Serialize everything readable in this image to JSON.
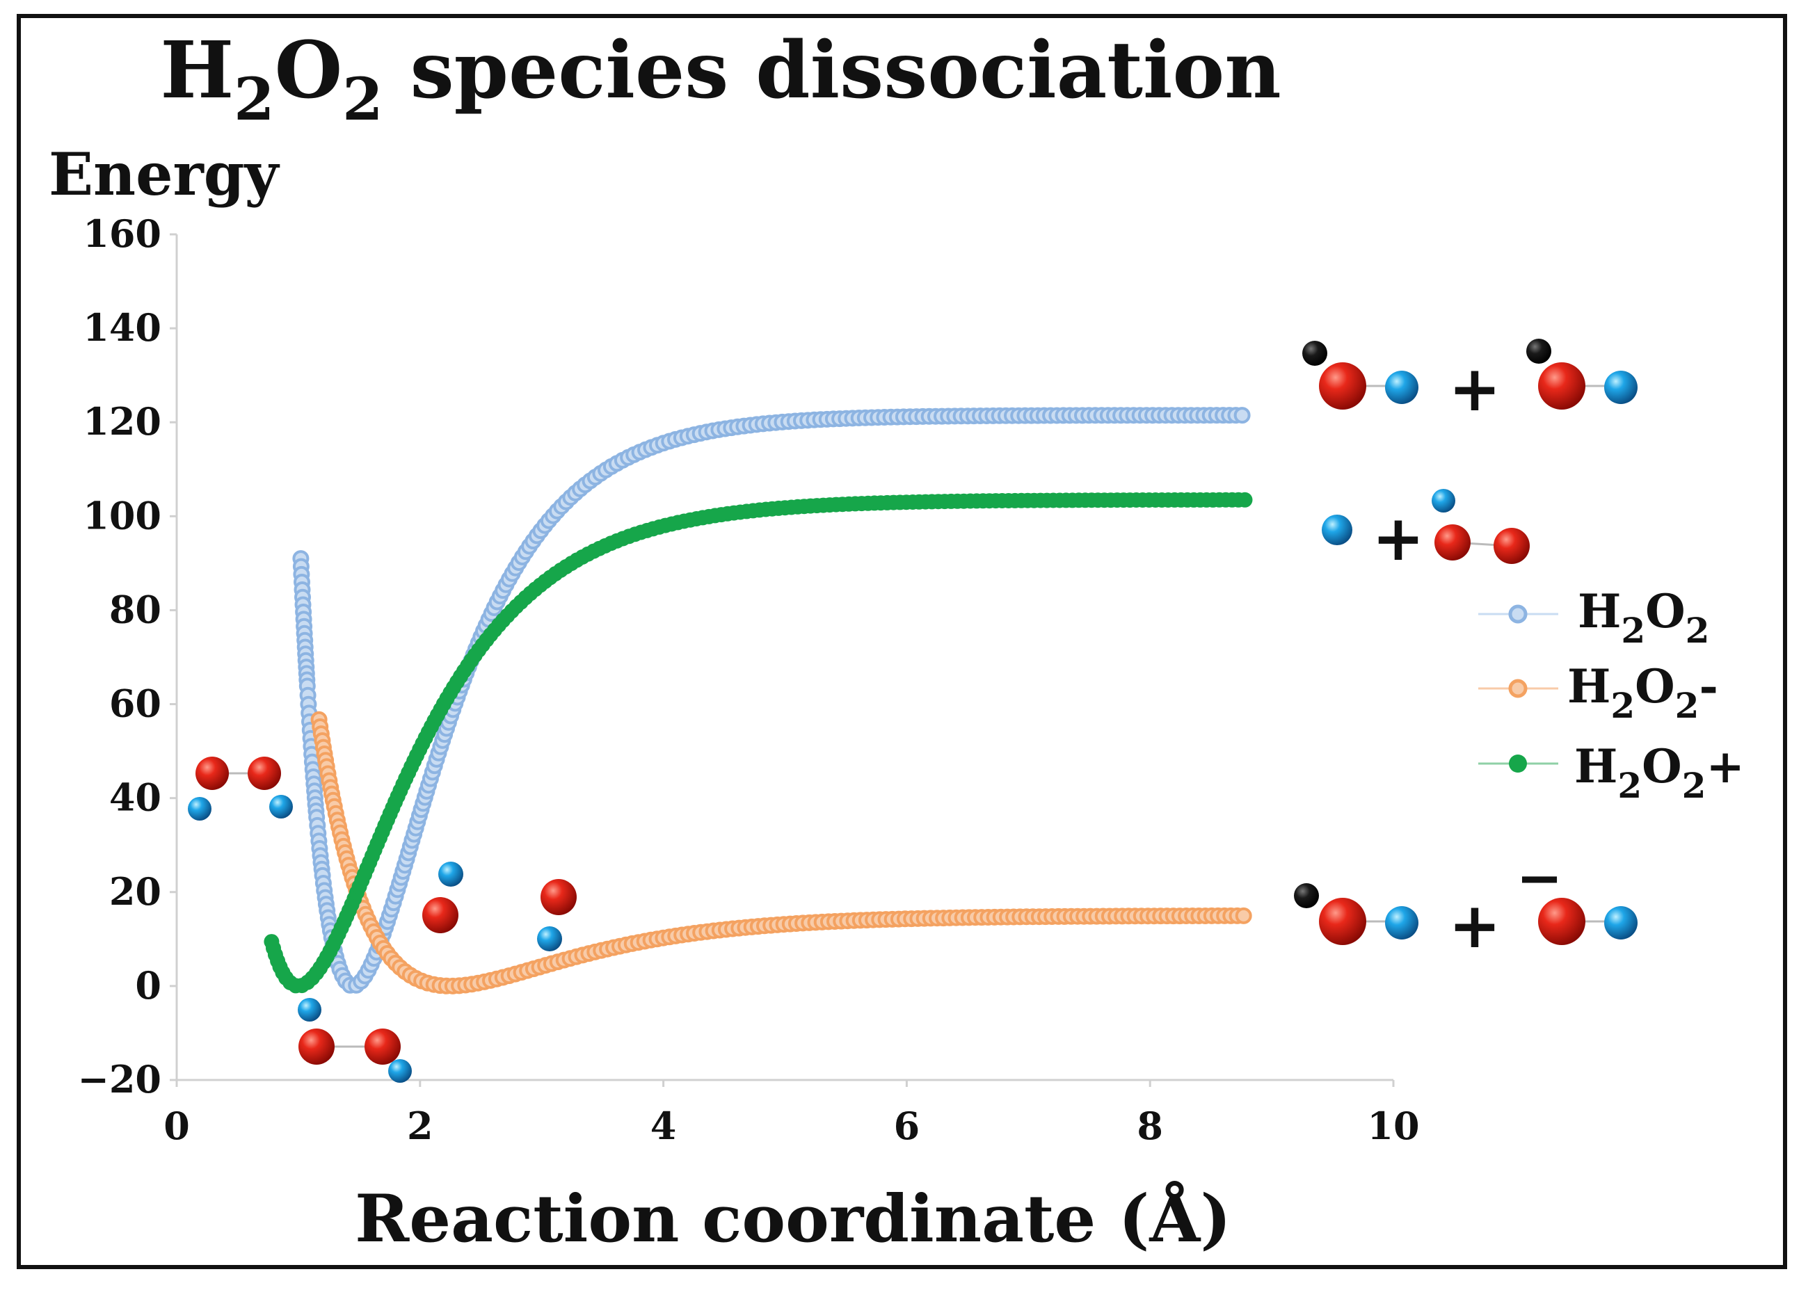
{
  "chart_data": {
    "type": "scatter",
    "title": {
      "main": "H",
      "sub1": "2",
      "mid": "O",
      "sub2": "2",
      "rest": " species dissociation"
    },
    "ylabel": "Energy",
    "xlabel": "Reaction coordinate (Å)",
    "xlim": [
      0,
      10
    ],
    "ylim": [
      -20,
      160
    ],
    "xticks": [
      "0",
      "2",
      "4",
      "6",
      "8",
      "10"
    ],
    "yticks": [
      "160",
      "140",
      "120",
      "100",
      "80",
      "60",
      "40",
      "20",
      "0",
      "−20"
    ],
    "grid": false,
    "legend_position": "right",
    "series": [
      {
        "name": "H2O2",
        "label_main": "H",
        "label_sub1": "2",
        "label_mid": "O",
        "label_sub2": "2",
        "label_suffix": "",
        "color": "#8db4e2",
        "line_color": "#c9dcf2",
        "marker": "hollow",
        "depth": 121.5,
        "r_eq": 1.45,
        "a": 1.45,
        "x_start": 1.02,
        "x_end": 8.8
      },
      {
        "name": "H2O2-",
        "label_main": "H",
        "label_sub1": "2",
        "label_mid": "O",
        "label_sub2": "2",
        "label_suffix": "-",
        "color": "#f4a261",
        "line_color": "#f8cba8",
        "marker": "hollow",
        "depth": 15.0,
        "r_eq": 2.25,
        "a": 1.0,
        "x_start": 1.17,
        "x_end": 8.8
      },
      {
        "name": "H2O2+",
        "label_main": "H",
        "label_sub1": "2",
        "label_mid": "O",
        "label_sub2": "2",
        "label_suffix": "+",
        "color": "#16a64a",
        "line_color": "#8fd0a6",
        "marker": "filled",
        "depth": 103.5,
        "r_eq": 1.0,
        "a": 1.2,
        "x_start": 0.78,
        "x_end": 8.8
      }
    ],
    "annotations": [
      "+",
      "+",
      "+",
      "−"
    ],
    "colors": {
      "oxygen": "#d91a10",
      "hydrogen": "#1d9fe0",
      "electron": "#111111"
    }
  }
}
